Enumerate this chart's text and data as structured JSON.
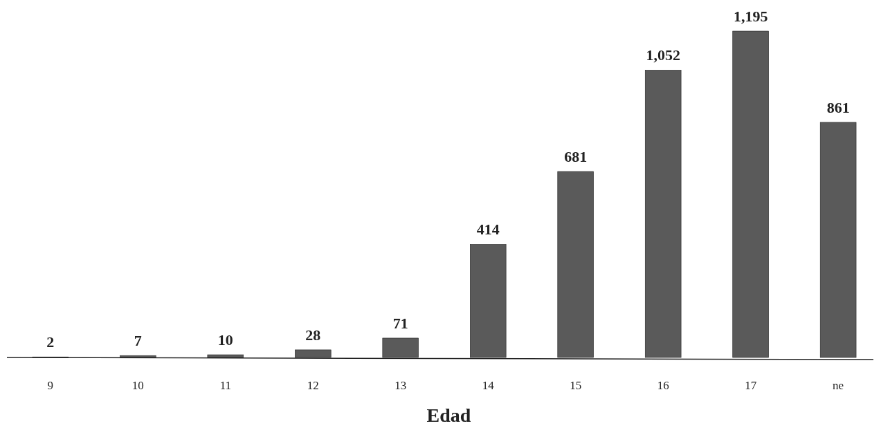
{
  "chart_data": {
    "type": "bar",
    "xlabel": "Edad",
    "categories": [
      "9",
      "10",
      "11",
      "12",
      "13",
      "14",
      "15",
      "16",
      "17",
      "ne"
    ],
    "values": [
      2,
      7,
      10,
      28,
      71,
      414,
      681,
      1052,
      1195,
      861
    ],
    "value_labels": [
      "2",
      "7",
      "10",
      "28",
      "71",
      "414",
      "681",
      "1,052",
      "1,195",
      "861"
    ],
    "color": "#5a5a5a"
  }
}
